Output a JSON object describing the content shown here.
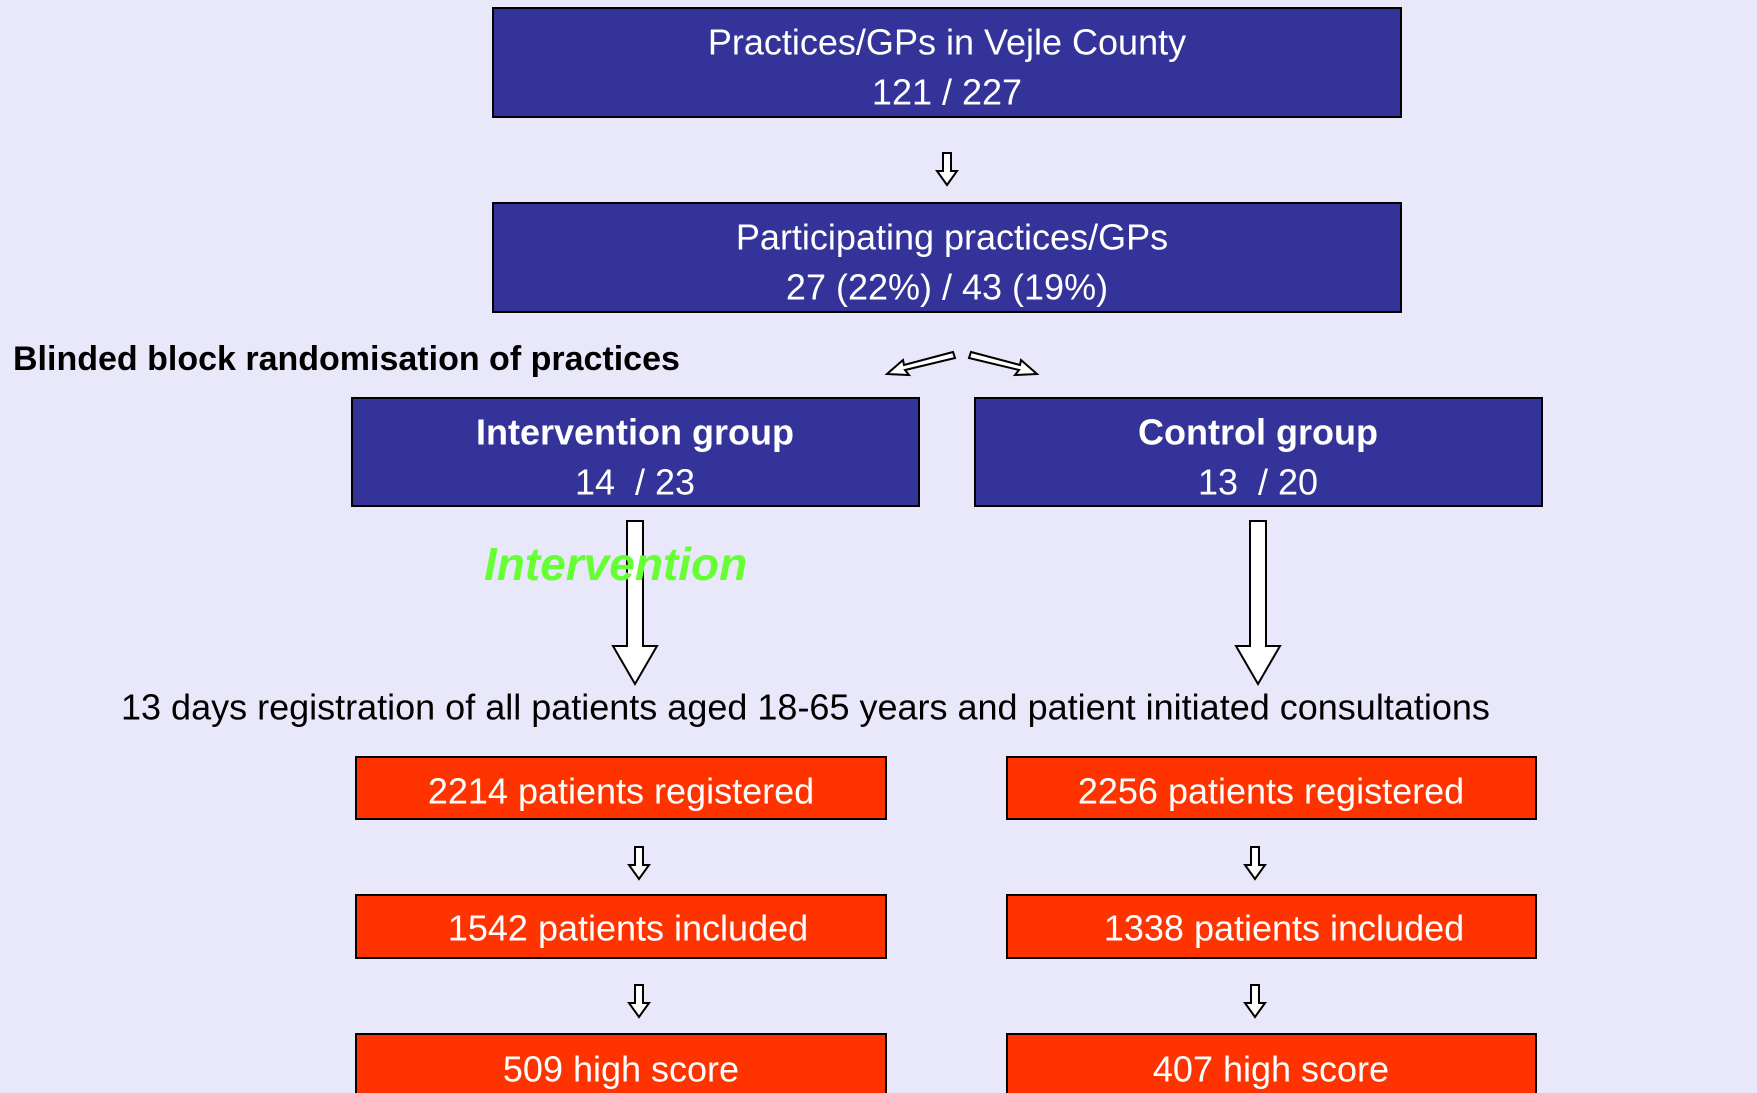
{
  "nodes": [
    {
      "label": "Practices/GPs in Vejle County",
      "detail": "121 / 227"
    },
    {
      "label": "Participating practices/GPs",
      "detail": "27 (22%) / 43 (19%)"
    },
    {
      "label": "Intervention group",
      "detail": "14  / 23"
    },
    {
      "label": "Control group",
      "detail": "13  / 20"
    },
    {
      "label": "2214 patients registered"
    },
    {
      "label": "2256 patients registered"
    },
    {
      "label": "1542 patients included"
    },
    {
      "label": "1338 patients included"
    },
    {
      "label": "509 high score"
    },
    {
      "label": "407 high score"
    }
  ],
  "randomisation_label": "Blinded block randomisation of practices",
  "intervention_label": "Intervention",
  "registration_label": "13 days registration of all patients aged 18-65 years and patient initiated consultations"
}
